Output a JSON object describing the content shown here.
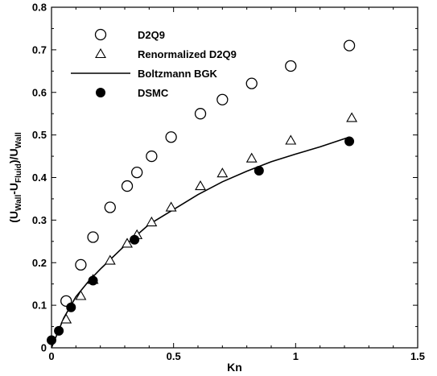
{
  "chart_data": {
    "type": "scatter",
    "xlabel": "Kn",
    "ylabel_parts": [
      {
        "text": "(U",
        "sub": false
      },
      {
        "text": "Wall",
        "sub": true
      },
      {
        "text": "-U",
        "sub": false
      },
      {
        "text": "Fluid",
        "sub": true
      },
      {
        "text": ")/U",
        "sub": false
      },
      {
        "text": "Wall",
        "sub": true
      }
    ],
    "xlim": [
      0,
      1.5
    ],
    "ylim": [
      0,
      0.8
    ],
    "x_ticks": [
      "0",
      "0.5",
      "1",
      "1.5"
    ],
    "y_ticks": [
      "0",
      "0.1",
      "0.2",
      "0.3",
      "0.4",
      "0.5",
      "0.6",
      "0.7",
      "0.8"
    ],
    "legend_position": "top-left",
    "series": [
      {
        "name": "D2Q9",
        "style": "open-circle",
        "color": "#000000",
        "x": [
          0.06,
          0.12,
          0.17,
          0.24,
          0.31,
          0.35,
          0.41,
          0.49,
          0.61,
          0.7,
          0.82,
          0.98,
          1.22
        ],
        "y": [
          0.11,
          0.195,
          0.26,
          0.33,
          0.38,
          0.412,
          0.45,
          0.495,
          0.55,
          0.583,
          0.621,
          0.662,
          0.71
        ]
      },
      {
        "name": "Renormalized D2Q9",
        "style": "open-triangle",
        "color": "#000000",
        "x": [
          0.06,
          0.12,
          0.17,
          0.24,
          0.31,
          0.35,
          0.41,
          0.49,
          0.61,
          0.7,
          0.82,
          0.98,
          1.23
        ],
        "y": [
          0.067,
          0.122,
          0.16,
          0.205,
          0.245,
          0.265,
          0.295,
          0.33,
          0.38,
          0.41,
          0.445,
          0.487,
          0.54
        ]
      },
      {
        "name": "Boltzmann BGK",
        "style": "line",
        "color": "#000000",
        "x": [
          0,
          0.05,
          0.1,
          0.15,
          0.2,
          0.3,
          0.4,
          0.5,
          0.6,
          0.7,
          0.8,
          0.9,
          1.0,
          1.1,
          1.22
        ],
        "y": [
          0,
          0.07,
          0.12,
          0.155,
          0.185,
          0.24,
          0.29,
          0.325,
          0.36,
          0.39,
          0.415,
          0.437,
          0.455,
          0.472,
          0.495
        ]
      },
      {
        "name": "DSMC",
        "style": "filled-circle",
        "color": "#000000",
        "x": [
          0.0,
          0.03,
          0.08,
          0.17,
          0.34,
          0.85,
          1.22
        ],
        "y": [
          0.018,
          0.04,
          0.095,
          0.158,
          0.254,
          0.416,
          0.485
        ]
      }
    ]
  }
}
